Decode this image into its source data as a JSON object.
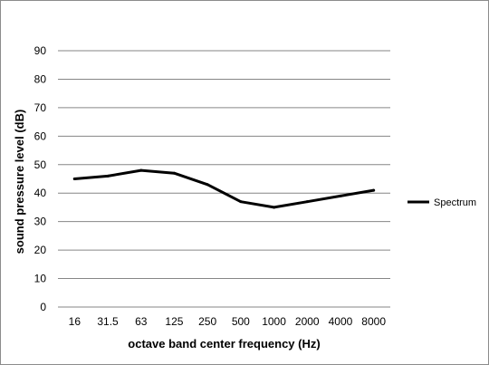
{
  "chart_data": {
    "type": "line",
    "title": "",
    "xlabel": "octave band center frequency (Hz)",
    "ylabel": "sound pressure level (dB)",
    "categories": [
      "16",
      "31.5",
      "63",
      "125",
      "250",
      "500",
      "1000",
      "2000",
      "4000",
      "8000"
    ],
    "ylim": [
      0,
      90
    ],
    "yticks": [
      0,
      10,
      20,
      30,
      40,
      50,
      60,
      70,
      80,
      90
    ],
    "grid": true,
    "legend_position": "right",
    "series": [
      {
        "name": "Spectrum",
        "color": "#000000",
        "values": [
          45,
          46,
          48,
          47,
          43,
          37,
          35,
          37,
          39,
          41
        ]
      }
    ]
  }
}
